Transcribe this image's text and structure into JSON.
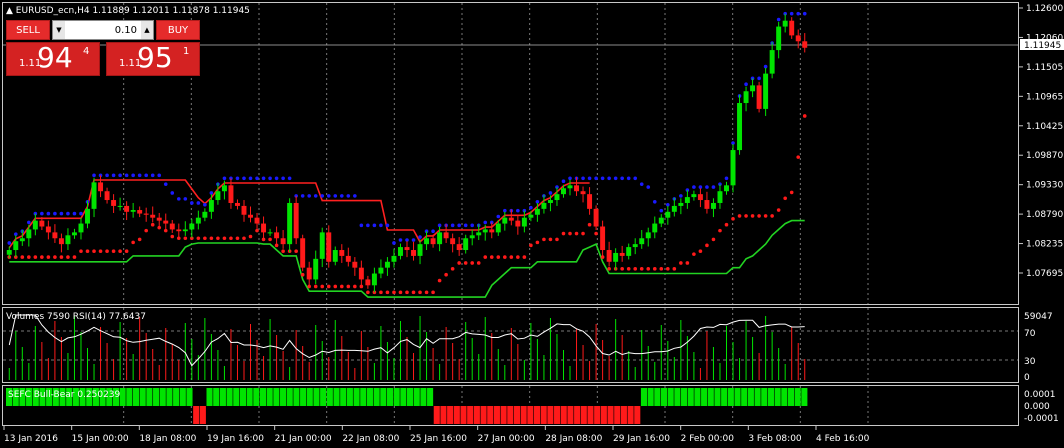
{
  "chart_title": "EURUSD_ecn,H4  1.11889 1.12011 1.11878 1.11945",
  "trade_panel": {
    "sell_label": "SELL",
    "buy_label": "BUY",
    "lot_value": "0.10",
    "sell_price": {
      "small": "1.11",
      "big": "94",
      "sup": "4"
    },
    "buy_price": {
      "small": "1.11",
      "big": "95",
      "sup": "1"
    }
  },
  "price_axis": {
    "labels": [
      "1.12600",
      "1.12060",
      "1.11505",
      "1.10965",
      "1.10425",
      "1.09870",
      "1.09330",
      "1.08790",
      "1.08235",
      "1.07695"
    ],
    "current_price": "1.11945"
  },
  "volume_panel": {
    "label": "Volumes 7590  RSI(14) 77.6437",
    "axis_labels": [
      "59047",
      "70",
      "30",
      "0"
    ]
  },
  "bullbear_panel": {
    "label": "SEFC Bull-Bear 0.250239",
    "axis_labels": [
      "0.0001",
      "0.000",
      "-0.0001"
    ]
  },
  "time_axis": {
    "labels": [
      "13 Jan 2016",
      "15 Jan 00:00",
      "18 Jan 08:00",
      "19 Jan 16:00",
      "21 Jan 00:00",
      "22 Jan 08:00",
      "25 Jan 16:00",
      "27 Jan 00:00",
      "28 Jan 08:00",
      "29 Jan 16:00",
      "2 Feb 00:00",
      "3 Feb 08:00",
      "4 Feb 16:00"
    ]
  },
  "chart_data": {
    "type": "candlestick",
    "symbol": "EURUSD_ecn",
    "timeframe": "H4",
    "ohlc_last": {
      "open": 1.11889,
      "high": 1.12011,
      "low": 1.11878,
      "close": 1.11945
    },
    "price_range": [
      1.0765,
      1.1265
    ],
    "closes": [
      1.085,
      1.0865,
      1.087,
      1.0885,
      1.09,
      1.089,
      1.088,
      1.087,
      1.086,
      1.0875,
      1.088,
      1.0895,
      1.092,
      1.0965,
      1.095,
      1.0935,
      1.0925,
      1.0925,
      1.0915,
      1.0918,
      1.0912,
      1.091,
      1.0905,
      1.09,
      1.0895,
      1.0885,
      1.0882,
      1.0885,
      1.0895,
      1.0905,
      1.0915,
      1.0935,
      1.095,
      1.096,
      1.093,
      1.0925,
      1.091,
      1.0905,
      1.0895,
      1.088,
      1.088,
      1.087,
      1.086,
      1.093,
      1.087,
      1.082,
      1.08,
      1.0835,
      1.088,
      1.083,
      1.085,
      1.084,
      1.083,
      1.082,
      1.08,
      1.079,
      1.081,
      1.082,
      1.083,
      1.084,
      1.0855,
      1.085,
      1.084,
      1.086,
      1.087,
      1.086,
      1.088,
      1.087,
      1.086,
      1.085,
      1.087,
      1.0875,
      1.088,
      1.0885,
      1.088,
      1.0895,
      1.0905,
      1.09,
      1.089,
      1.0905,
      1.091,
      1.092,
      1.093,
      1.0935,
      1.0945,
      1.0955,
      1.096,
      1.095,
      1.0945,
      1.092,
      1.089,
      1.085,
      1.083,
      1.0845,
      1.084,
      1.0855,
      1.086,
      1.087,
      1.088,
      1.0895,
      1.0905,
      1.0915,
      1.0925,
      1.093,
      1.094,
      1.0945,
      1.0935,
      1.092,
      1.093,
      1.095,
      1.096,
      1.102,
      1.11,
      1.112,
      1.113,
      1.109,
      1.115,
      1.119,
      1.123,
      1.124,
      1.1215,
      1.1205,
      1.1194
    ],
    "volume_panel": {
      "rsi_period": 14,
      "volume": 7590,
      "rsi": 77.6437,
      "levels": [
        70,
        30
      ]
    },
    "bullbear": {
      "value": 0.250239,
      "pattern": [
        1,
        1,
        1,
        1,
        1,
        1,
        1,
        1,
        1,
        1,
        1,
        1,
        1,
        1,
        1,
        1,
        1,
        1,
        1,
        1,
        1,
        1,
        1,
        1,
        1,
        1,
        1,
        1,
        0,
        0,
        1,
        1,
        1,
        1,
        1,
        1,
        1,
        1,
        1,
        1,
        1,
        1,
        1,
        1,
        1,
        1,
        1,
        1,
        1,
        1,
        1,
        1,
        1,
        1,
        1,
        1,
        1,
        1,
        1,
        1,
        1,
        1,
        1,
        1,
        0,
        0,
        0,
        0,
        0,
        0,
        0,
        0,
        0,
        0,
        0,
        0,
        0,
        0,
        0,
        0,
        0,
        0,
        0,
        0,
        0,
        0,
        0,
        0,
        0,
        0,
        0,
        0,
        0,
        0,
        0,
        1,
        1,
        1,
        1,
        1,
        1,
        1,
        1,
        1,
        1,
        1,
        1,
        1,
        1,
        1,
        1,
        1,
        1,
        1,
        1,
        1,
        1,
        1,
        1,
        1
      ]
    },
    "colors": {
      "bull": "#00e400",
      "bear": "#ff1a1a",
      "resistance_dots": "#1a1aff",
      "support_dots": "#ff1a1a",
      "red_line": "#ff2020",
      "green_line": "#22d322",
      "grid": "#777777",
      "price_line": "#c8c8c8"
    }
  }
}
